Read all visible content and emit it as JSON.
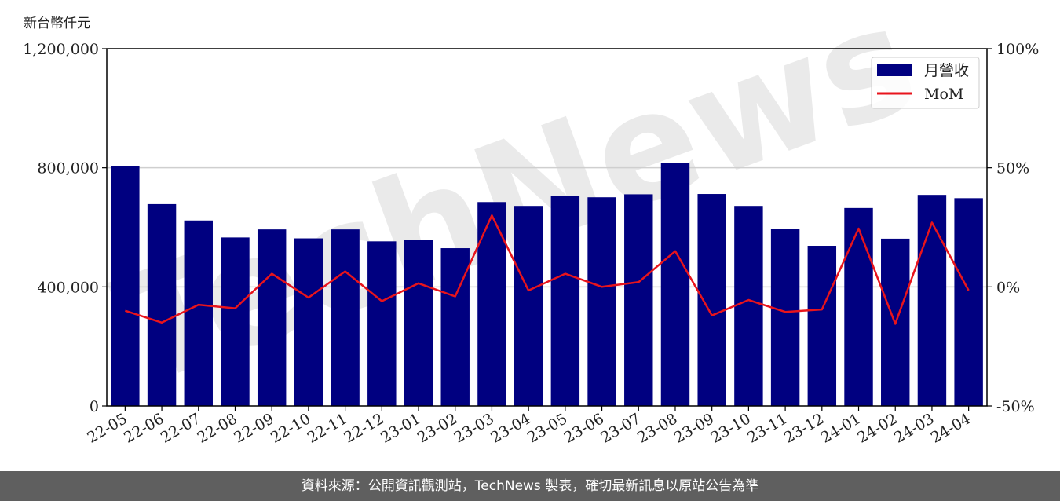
{
  "unit_label": "新台幣仟元",
  "footer_text": "資料來源：公開資訊觀測站，TechNews 製表，確切最新訊息以原站公告為準",
  "watermark": "TechNews",
  "colors": {
    "bar": "#000080",
    "line": "#e8141c",
    "footer_bg": "#5f5f5f"
  },
  "chart_data": {
    "type": "bar",
    "categories": [
      "22-05",
      "22-06",
      "22-07",
      "22-08",
      "22-09",
      "22-10",
      "22-11",
      "22-12",
      "23-01",
      "23-02",
      "23-03",
      "23-04",
      "23-05",
      "23-06",
      "23-07",
      "23-08",
      "23-09",
      "23-10",
      "23-11",
      "23-12",
      "24-01",
      "24-02",
      "24-03",
      "24-04"
    ],
    "series": [
      {
        "name": "月營收",
        "type": "bar",
        "axis": "left",
        "values": [
          805000,
          678000,
          623000,
          566000,
          593000,
          563000,
          593000,
          553000,
          558000,
          530000,
          685000,
          672000,
          706000,
          701000,
          711000,
          815000,
          712000,
          672000,
          596000,
          538000,
          665000,
          562000,
          709000,
          698000
        ]
      },
      {
        "name": "MoM",
        "type": "line",
        "axis": "right",
        "values": [
          -10,
          -15,
          -7.5,
          -9,
          5.5,
          -4.5,
          6.5,
          -6,
          1.5,
          -4,
          30,
          -1.5,
          5.5,
          0,
          2,
          15,
          -12,
          -5.5,
          -10.5,
          -9.5,
          24.5,
          -15.5,
          27,
          -1.5
        ]
      }
    ],
    "y_left": {
      "lim": [
        0,
        1200000
      ],
      "ticks": [
        "0",
        "400,000",
        "800,000",
        "1,200,000"
      ],
      "tick_values": [
        0,
        400000,
        800000,
        1200000
      ]
    },
    "y_right": {
      "lim": [
        -50,
        100
      ],
      "ticks": [
        "-50%",
        "0%",
        "50%",
        "100%"
      ],
      "tick_values": [
        -50,
        0,
        50,
        100
      ]
    },
    "grid": "horizontal",
    "legend_position": "top-right"
  }
}
